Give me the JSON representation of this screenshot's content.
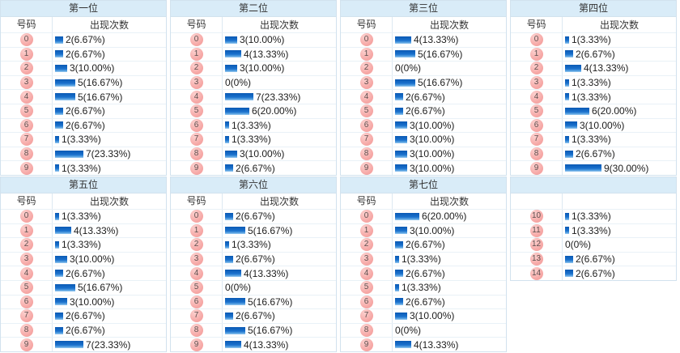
{
  "colors": {
    "title_band_bg": "#d9ecf8",
    "table_border": "#d2e2ee",
    "row_divider": "#e9f1f7",
    "column_divider": "#dde9f2",
    "bar_blue": "#1a70cc",
    "badge_pink": "#f6a7a5",
    "badge_text": "#5c4f4f",
    "text": "#333333"
  },
  "chart_data": [
    {
      "type": "bar",
      "title": "第一位",
      "header_num": "号码",
      "header_count": "出现次数",
      "categories": [
        "0",
        "1",
        "2",
        "3",
        "4",
        "5",
        "6",
        "7",
        "8",
        "9"
      ],
      "values": [
        2,
        2,
        3,
        5,
        5,
        2,
        2,
        1,
        7,
        1
      ],
      "labels": [
        "2(6.67%)",
        "2(6.67%)",
        "3(10.00%)",
        "5(16.67%)",
        "5(16.67%)",
        "2(6.67%)",
        "2(6.67%)",
        "1(3.33%)",
        "7(23.33%)",
        "1(3.33%)"
      ]
    },
    {
      "type": "bar",
      "title": "第二位",
      "header_num": "号码",
      "header_count": "出现次数",
      "categories": [
        "0",
        "1",
        "2",
        "3",
        "4",
        "5",
        "6",
        "7",
        "8",
        "9"
      ],
      "values": [
        3,
        4,
        3,
        0,
        7,
        6,
        1,
        1,
        3,
        2
      ],
      "labels": [
        "3(10.00%)",
        "4(13.33%)",
        "3(10.00%)",
        "0(0%)",
        "7(23.33%)",
        "6(20.00%)",
        "1(3.33%)",
        "1(3.33%)",
        "3(10.00%)",
        "2(6.67%)"
      ]
    },
    {
      "type": "bar",
      "title": "第三位",
      "header_num": "号码",
      "header_count": "出现次数",
      "categories": [
        "0",
        "1",
        "2",
        "3",
        "4",
        "5",
        "6",
        "7",
        "8",
        "9"
      ],
      "values": [
        4,
        5,
        0,
        5,
        2,
        2,
        3,
        3,
        3,
        3
      ],
      "labels": [
        "4(13.33%)",
        "5(16.67%)",
        "0(0%)",
        "5(16.67%)",
        "2(6.67%)",
        "2(6.67%)",
        "3(10.00%)",
        "3(10.00%)",
        "3(10.00%)",
        "3(10.00%)"
      ]
    },
    {
      "type": "bar",
      "title": "第四位",
      "header_num": "号码",
      "header_count": "出现次数",
      "categories": [
        "0",
        "1",
        "2",
        "3",
        "4",
        "5",
        "6",
        "7",
        "8",
        "9"
      ],
      "values": [
        1,
        2,
        4,
        1,
        1,
        6,
        3,
        1,
        2,
        9
      ],
      "labels": [
        "1(3.33%)",
        "2(6.67%)",
        "4(13.33%)",
        "1(3.33%)",
        "1(3.33%)",
        "6(20.00%)",
        "3(10.00%)",
        "1(3.33%)",
        "2(6.67%)",
        "9(30.00%)"
      ]
    },
    {
      "type": "bar",
      "title": "第五位",
      "header_num": "号码",
      "header_count": "出现次数",
      "categories": [
        "0",
        "1",
        "2",
        "3",
        "4",
        "5",
        "6",
        "7",
        "8",
        "9"
      ],
      "values": [
        1,
        4,
        1,
        3,
        2,
        5,
        3,
        2,
        2,
        7
      ],
      "labels": [
        "1(3.33%)",
        "4(13.33%)",
        "1(3.33%)",
        "3(10.00%)",
        "2(6.67%)",
        "5(16.67%)",
        "3(10.00%)",
        "2(6.67%)",
        "2(6.67%)",
        "7(23.33%)"
      ]
    },
    {
      "type": "bar",
      "title": "第六位",
      "header_num": "号码",
      "header_count": "出现次数",
      "categories": [
        "0",
        "1",
        "2",
        "3",
        "4",
        "5",
        "6",
        "7",
        "8",
        "9"
      ],
      "values": [
        2,
        5,
        1,
        2,
        4,
        0,
        5,
        2,
        5,
        4
      ],
      "labels": [
        "2(6.67%)",
        "5(16.67%)",
        "1(3.33%)",
        "2(6.67%)",
        "4(13.33%)",
        "0(0%)",
        "5(16.67%)",
        "2(6.67%)",
        "5(16.67%)",
        "4(13.33%)"
      ]
    },
    {
      "type": "bar",
      "title": "第七位",
      "header_num": "号码",
      "header_count": "出现次数",
      "categories": [
        "0",
        "1",
        "2",
        "3",
        "4",
        "5",
        "6",
        "7",
        "8",
        "9"
      ],
      "values": [
        6,
        3,
        2,
        1,
        2,
        1,
        2,
        3,
        0,
        4
      ],
      "labels": [
        "6(20.00%)",
        "3(10.00%)",
        "2(6.67%)",
        "1(3.33%)",
        "2(6.67%)",
        "1(3.33%)",
        "2(6.67%)",
        "3(10.00%)",
        "0(0%)",
        "4(13.33%)"
      ]
    },
    {
      "type": "bar",
      "title": "",
      "header_num": "",
      "header_count": "",
      "categories": [
        "10",
        "11",
        "12",
        "13",
        "14"
      ],
      "values": [
        1,
        1,
        0,
        2,
        2
      ],
      "labels": [
        "1(3.33%)",
        "1(3.33%)",
        "0(0%)",
        "2(6.67%)",
        "2(6.67%)"
      ]
    }
  ]
}
